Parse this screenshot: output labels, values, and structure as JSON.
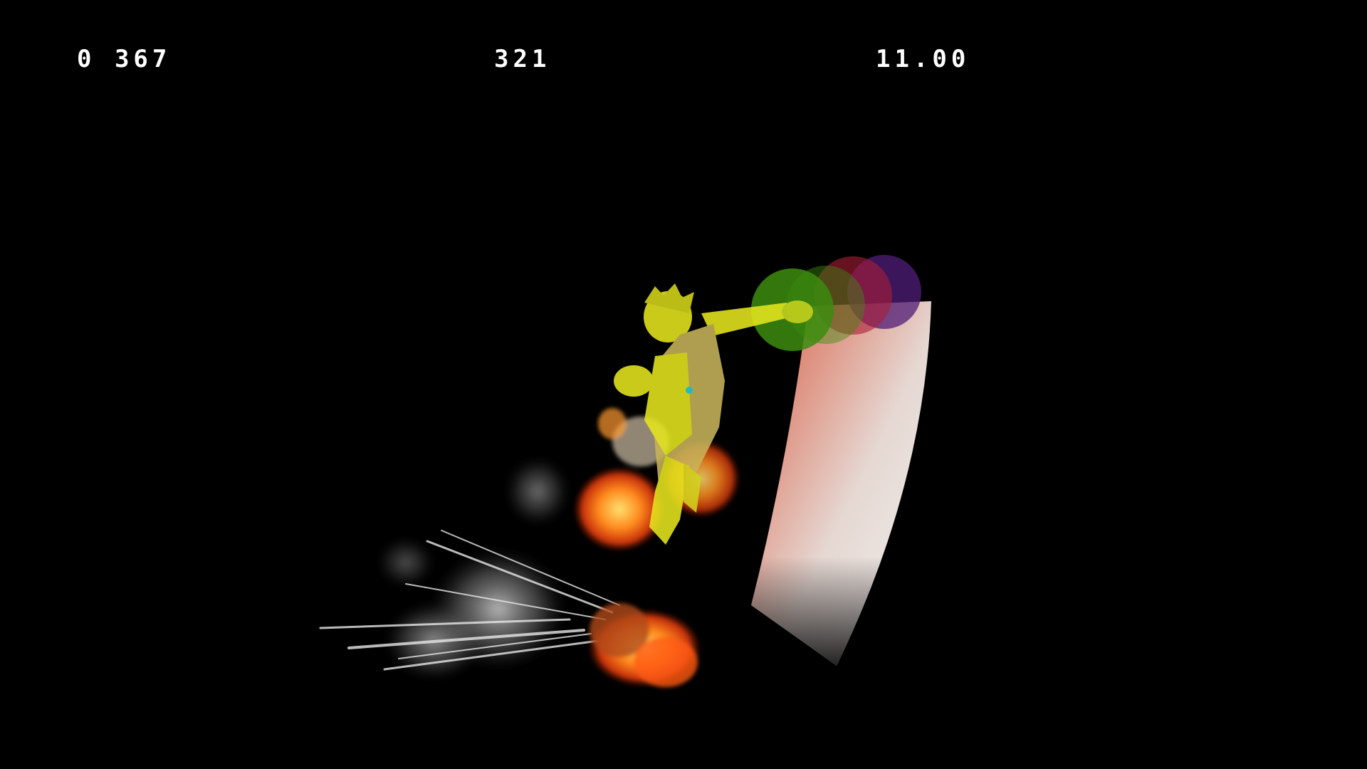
{
  "hud": {
    "frame_counter": "0 367",
    "frame_index": "321",
    "timer": "11.00"
  },
  "colors": {
    "background": "#000000",
    "hud_text": "#ffffff",
    "character": "#e6e61e",
    "hitbox_green": "#3c8c0f",
    "hitbox_red": "#aa1e37",
    "hitbox_purple": "#501e78",
    "sword_trail_top": "#ff6e50",
    "sword_trail_bottom": "#ffffff",
    "fire": "#ff7814",
    "smoke": "#d2d2d2"
  },
  "scene": {
    "character": "yellow-highlighted-fighter",
    "effects": [
      "sword-swing-trail",
      "hitbox-bubbles",
      "fire-explosion",
      "smoke-speed-lines"
    ]
  }
}
